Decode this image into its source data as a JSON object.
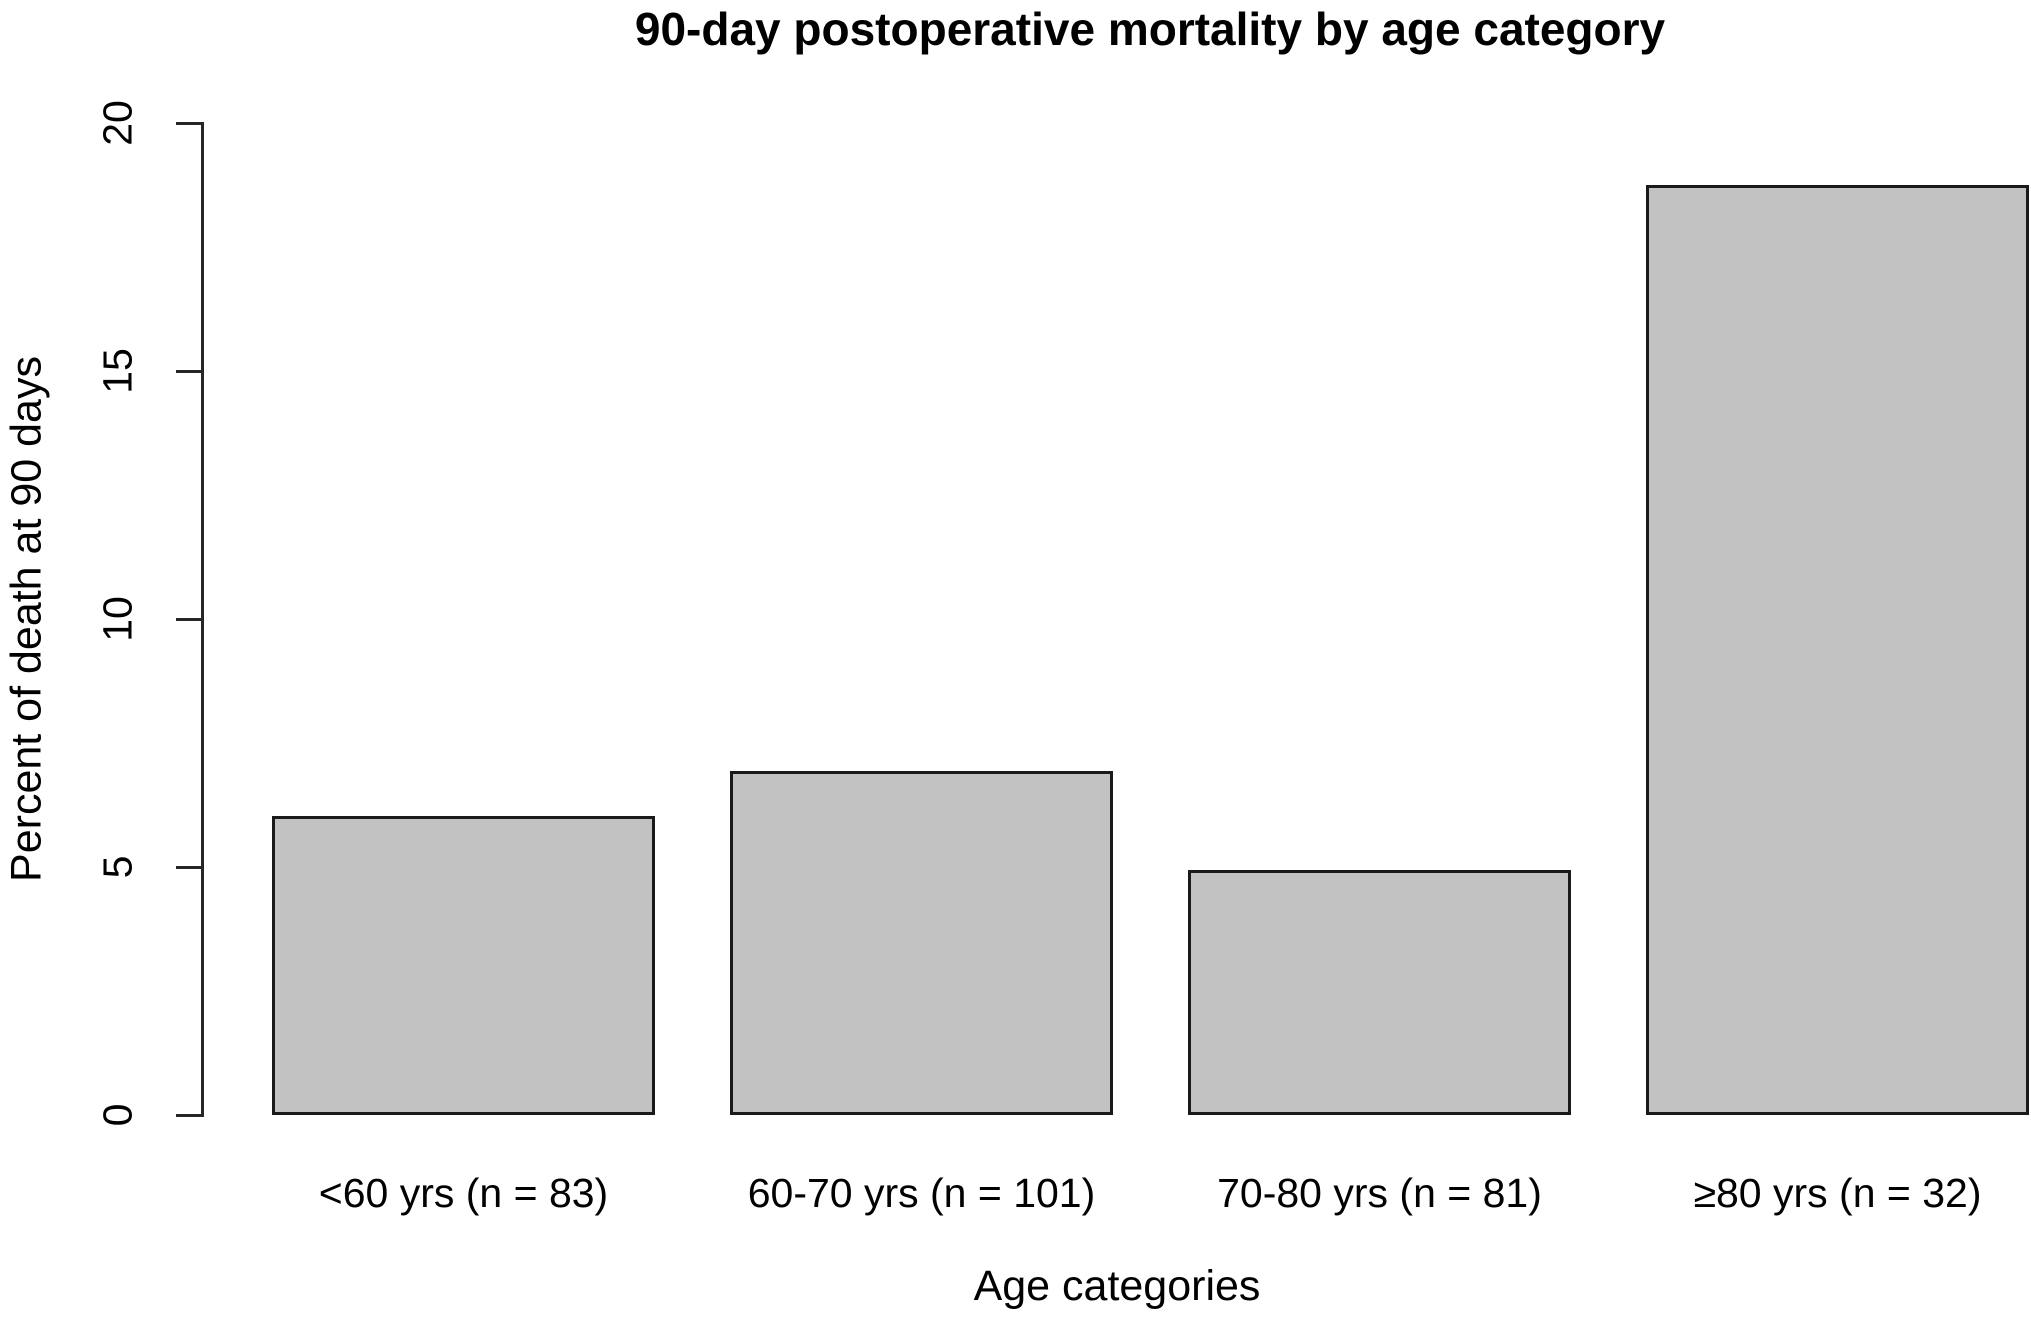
{
  "chart_data": {
    "type": "bar",
    "title": "90-day postoperative mortality by age category",
    "xlabel": "Age categories",
    "ylabel": "Percent of death at 90 days",
    "categories": [
      "<60 yrs (n = 83)",
      "60-70 yrs (n = 101)",
      "70-80 yrs (n = 81)",
      "≥80 yrs (n = 32)"
    ],
    "values": [
      6.02,
      6.93,
      4.94,
      18.75
    ],
    "ylim": [
      0,
      20
    ],
    "yticks": [
      0,
      5,
      10,
      15,
      20
    ],
    "grid": false,
    "legend": "none",
    "bar_fill": "#c2c2c2",
    "bar_border": "#1a1a1a",
    "axis_color": "#262626",
    "text_color": "#000000",
    "background": "#ffffff"
  }
}
